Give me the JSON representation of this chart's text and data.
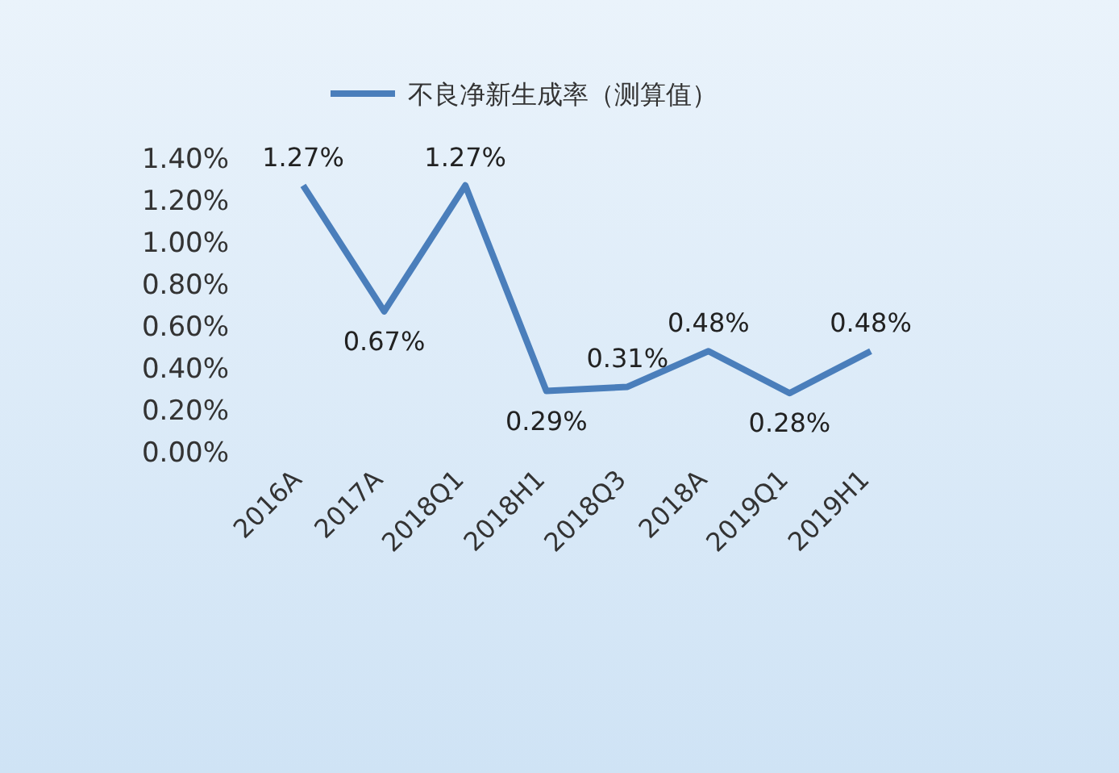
{
  "chart_data": {
    "type": "line",
    "categories": [
      "2016A",
      "2017A",
      "2018Q1",
      "2018H1",
      "2018Q3",
      "2018A",
      "2019Q1",
      "2019H1"
    ],
    "series": [
      {
        "name": "不良净新生成率（测算值）",
        "color": "#4a7ebb",
        "values": [
          1.27,
          0.67,
          1.27,
          0.29,
          0.31,
          0.48,
          0.28,
          0.48
        ],
        "value_labels": [
          "1.27%",
          "0.67%",
          "1.27%",
          "0.29%",
          "0.31%",
          "0.48%",
          "0.28%",
          "0.48%"
        ]
      }
    ],
    "ylim": [
      0,
      1.4
    ],
    "yticks": [
      {
        "value": 0,
        "label": "0.00%"
      },
      {
        "value": 0.2,
        "label": "0.20%"
      },
      {
        "value": 0.4,
        "label": "0.40%"
      },
      {
        "value": 0.6,
        "label": "0.60%"
      },
      {
        "value": 0.8,
        "label": "0.80%"
      },
      {
        "value": 1.0,
        "label": "1.00%"
      },
      {
        "value": 1.2,
        "label": "1.20%"
      },
      {
        "value": 1.4,
        "label": "1.40%"
      }
    ],
    "legend": "top",
    "grid": false,
    "marker": "none",
    "line_style": "solid"
  }
}
